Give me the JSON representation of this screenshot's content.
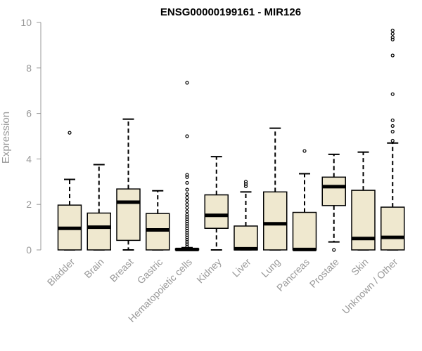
{
  "chart_data": {
    "type": "boxplot",
    "title": "ENSG00000199161 - MIR126",
    "xlabel": "",
    "ylabel": "Expression",
    "ylim": [
      0,
      10
    ],
    "yticks": [
      0,
      2,
      4,
      6,
      8,
      10
    ],
    "categories": [
      "Bladder",
      "Brain",
      "Breast",
      "Gastric",
      "Hematopoietic cells",
      "Kidney",
      "Liver",
      "Lung",
      "Pancreas",
      "Prostate",
      "Skin",
      "Unknown / Other"
    ],
    "boxes": [
      {
        "name": "Bladder",
        "whisker_low": 0,
        "q1": 0,
        "median": 0.95,
        "q3": 1.97,
        "whisker_high": 3.1,
        "outliers": [
          5.15
        ]
      },
      {
        "name": "Brain",
        "whisker_low": 0,
        "q1": 0,
        "median": 1.0,
        "q3": 1.62,
        "whisker_high": 3.75,
        "outliers": []
      },
      {
        "name": "Breast",
        "whisker_low": 0,
        "q1": 0.42,
        "median": 2.1,
        "q3": 2.68,
        "whisker_high": 5.75,
        "outliers": []
      },
      {
        "name": "Gastric",
        "whisker_low": 0,
        "q1": 0,
        "median": 0.88,
        "q3": 1.6,
        "whisker_high": 2.6,
        "outliers": []
      },
      {
        "name": "Hematopoietic cells",
        "whisker_low": 0,
        "q1": 0,
        "median": 0.02,
        "q3": 0.05,
        "whisker_high": 0.1,
        "outliers": [
          0.15,
          0.25,
          0.35,
          0.45,
          0.55,
          0.65,
          0.75,
          0.85,
          0.95,
          1.05,
          1.15,
          1.25,
          1.35,
          1.45,
          1.55,
          1.7,
          1.85,
          2.0,
          2.15,
          2.3,
          2.45,
          2.65,
          2.95,
          3.2,
          3.3,
          5.0,
          7.35
        ]
      },
      {
        "name": "Kidney",
        "whisker_low": 0,
        "q1": 0.95,
        "median": 1.52,
        "q3": 2.42,
        "whisker_high": 4.1,
        "outliers": []
      },
      {
        "name": "Liver",
        "whisker_low": 0,
        "q1": 0,
        "median": 0.05,
        "q3": 1.05,
        "whisker_high": 2.55,
        "outliers": [
          2.8,
          2.9,
          3.0
        ]
      },
      {
        "name": "Lung",
        "whisker_low": 0,
        "q1": 0,
        "median": 1.15,
        "q3": 2.55,
        "whisker_high": 5.35,
        "outliers": []
      },
      {
        "name": "Pancreas",
        "whisker_low": 0,
        "q1": 0,
        "median": 0.02,
        "q3": 1.65,
        "whisker_high": 3.35,
        "outliers": [
          4.35
        ]
      },
      {
        "name": "Prostate",
        "whisker_low": 0.35,
        "q1": 1.95,
        "median": 2.78,
        "q3": 3.2,
        "whisker_high": 4.2,
        "outliers": [
          0
        ]
      },
      {
        "name": "Skin",
        "whisker_low": 0,
        "q1": 0,
        "median": 0.5,
        "q3": 2.62,
        "whisker_high": 4.3,
        "outliers": []
      },
      {
        "name": "Unknown / Other",
        "whisker_low": 0,
        "q1": 0,
        "median": 0.55,
        "q3": 1.88,
        "whisker_high": 4.7,
        "outliers": [
          4.8,
          5.2,
          5.45,
          5.7,
          6.85,
          8.55,
          9.25,
          9.35,
          9.5,
          9.65
        ]
      }
    ],
    "colors": {
      "box_fill": "#efe8cf",
      "stroke": "#000000",
      "axis_text": "#999999"
    }
  }
}
